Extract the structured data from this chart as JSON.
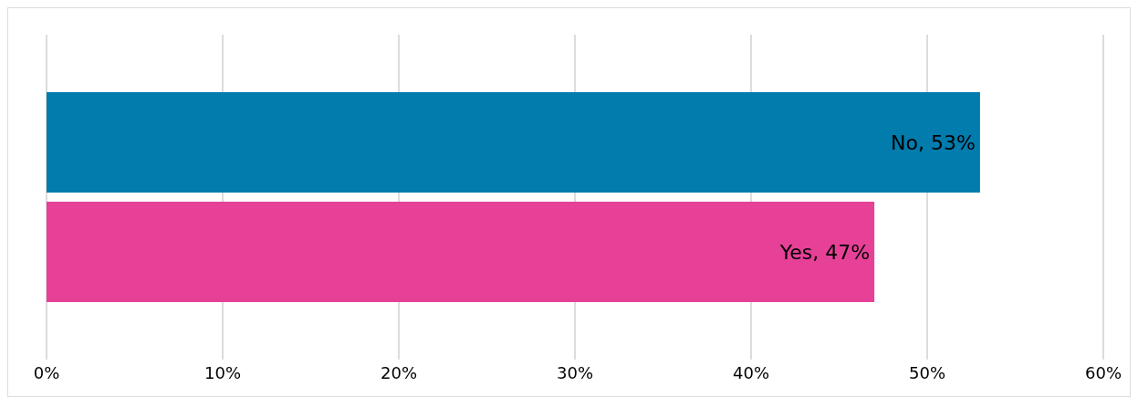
{
  "chart_data": {
    "type": "bar",
    "orientation": "horizontal",
    "categories": [
      null,
      null
    ],
    "values": [
      53,
      47
    ],
    "colors": [
      "#027bad",
      "#e64097"
    ],
    "value_labels": [
      "No, 53%",
      "Yes, 47%"
    ],
    "xlim": [
      0,
      60
    ],
    "xticks": [
      {
        "value": 0,
        "label": "0%"
      },
      {
        "value": 10,
        "label": "10%"
      },
      {
        "value": 20,
        "label": "20%"
      },
      {
        "value": 30,
        "label": "30%"
      },
      {
        "value": 40,
        "label": "40%"
      },
      {
        "value": 50,
        "label": "50%"
      },
      {
        "value": 60,
        "label": "60%"
      }
    ],
    "grid": "x",
    "tick_labels": "x",
    "legend": false
  }
}
